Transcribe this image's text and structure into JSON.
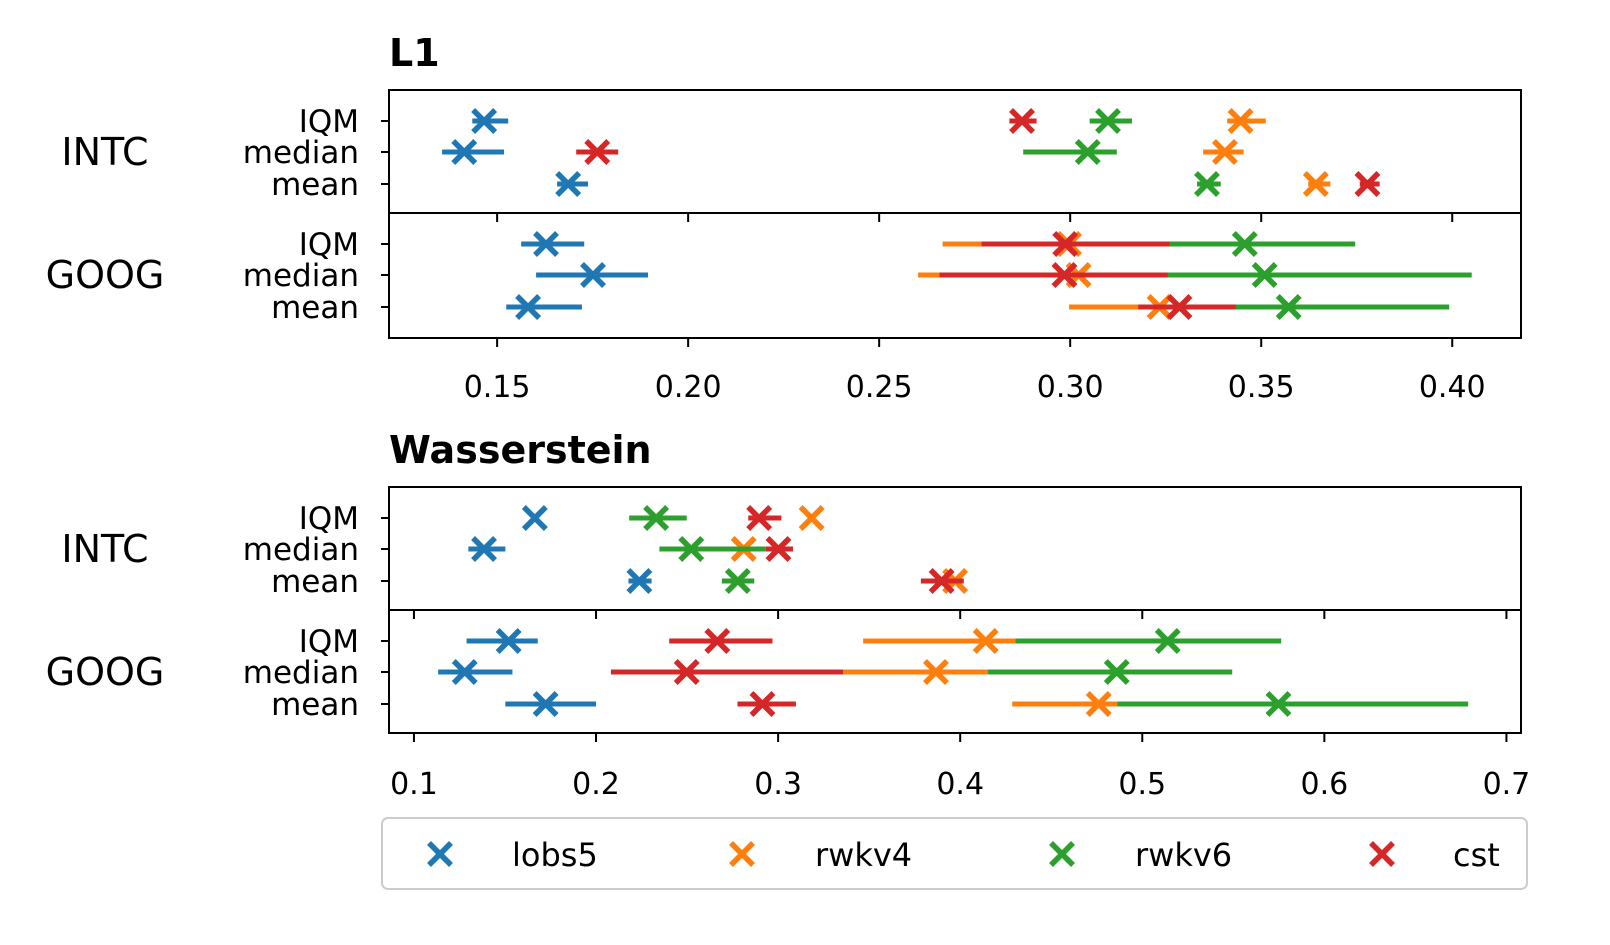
{
  "legend": {
    "position": "bottom",
    "items": [
      {
        "label": "lobs5",
        "color": "#1f77b4"
      },
      {
        "label": "rwkv4",
        "color": "#ff7f0e"
      },
      {
        "label": "rwkv6",
        "color": "#2ca02c"
      },
      {
        "label": "cst",
        "color": "#d62728"
      }
    ]
  },
  "chart_data": [
    {
      "type": "scatter",
      "title": "L1",
      "groups": [
        "INTC",
        "GOOG"
      ],
      "stats": [
        "IQM",
        "median",
        "mean"
      ],
      "xlim": [
        0.1217,
        0.418
      ],
      "xticks": [
        0.15,
        0.2,
        0.25,
        0.3,
        0.35,
        0.4
      ],
      "xtick_labels": [
        "0.15",
        "0.20",
        "0.25",
        "0.30",
        "0.35",
        "0.40"
      ],
      "grid": false,
      "series": [
        {
          "name": "lobs5",
          "color": "#1f77b4",
          "points": [
            {
              "group": "INTC",
              "stat": "IQM",
              "value": 0.1466,
              "ci": [
                0.1435,
                0.1529
              ]
            },
            {
              "group": "INTC",
              "stat": "median",
              "value": 0.1414,
              "ci": [
                0.1356,
                0.1518
              ]
            },
            {
              "group": "INTC",
              "stat": "mean",
              "value": 0.1686,
              "ci": [
                0.1657,
                0.1738
              ]
            },
            {
              "group": "GOOG",
              "stat": "IQM",
              "value": 0.1628,
              "ci": [
                0.1563,
                0.1728
              ]
            },
            {
              "group": "GOOG",
              "stat": "median",
              "value": 0.1751,
              "ci": [
                0.1602,
                0.1895
              ]
            },
            {
              "group": "GOOG",
              "stat": "mean",
              "value": 0.1581,
              "ci": [
                0.1524,
                0.1722
              ]
            }
          ]
        },
        {
          "name": "rwkv4",
          "color": "#ff7f0e",
          "points": [
            {
              "group": "INTC",
              "stat": "IQM",
              "value": 0.3446,
              "ci": [
                0.3411,
                0.3512
              ]
            },
            {
              "group": "INTC",
              "stat": "median",
              "value": 0.3405,
              "ci": [
                0.3348,
                0.3454
              ]
            },
            {
              "group": "INTC",
              "stat": "mean",
              "value": 0.3643,
              "ci": [
                0.3623,
                0.3681
              ]
            },
            {
              "group": "GOOG",
              "stat": "IQM",
              "value": 0.2997,
              "ci": [
                0.2666,
                0.33
              ]
            },
            {
              "group": "GOOG",
              "stat": "median",
              "value": 0.3022,
              "ci": [
                0.2602,
                0.336
              ]
            },
            {
              "group": "GOOG",
              "stat": "mean",
              "value": 0.3234,
              "ci": [
                0.2997,
                0.34
              ]
            }
          ]
        },
        {
          "name": "rwkv6",
          "color": "#2ca02c",
          "points": [
            {
              "group": "INTC",
              "stat": "IQM",
              "value": 0.3099,
              "ci": [
                0.3051,
                0.3162
              ]
            },
            {
              "group": "INTC",
              "stat": "median",
              "value": 0.3046,
              "ci": [
                0.2877,
                0.3122
              ]
            },
            {
              "group": "INTC",
              "stat": "mean",
              "value": 0.3358,
              "ci": [
                0.3332,
                0.3394
              ]
            },
            {
              "group": "GOOG",
              "stat": "IQM",
              "value": 0.3457,
              "ci": [
                0.318,
                0.3746
              ]
            },
            {
              "group": "GOOG",
              "stat": "median",
              "value": 0.3509,
              "ci": [
                0.32,
                0.4051
              ]
            },
            {
              "group": "GOOG",
              "stat": "mean",
              "value": 0.3572,
              "ci": [
                0.335,
                0.3992
              ]
            }
          ]
        },
        {
          "name": "cst",
          "color": "#d62728",
          "points": [
            {
              "group": "INTC",
              "stat": "IQM",
              "value": 0.2874,
              "ci": [
                0.2841,
                0.2912
              ]
            },
            {
              "group": "INTC",
              "stat": "median",
              "value": 0.1762,
              "ci": [
                0.1707,
                0.1817
              ]
            },
            {
              "group": "INTC",
              "stat": "mean",
              "value": 0.3778,
              "ci": [
                0.3758,
                0.381
              ]
            },
            {
              "group": "GOOG",
              "stat": "IQM",
              "value": 0.2987,
              "ci": [
                0.2768,
                0.326
              ]
            },
            {
              "group": "GOOG",
              "stat": "median",
              "value": 0.2985,
              "ci": [
                0.2658,
                0.3255
              ]
            },
            {
              "group": "GOOG",
              "stat": "mean",
              "value": 0.3286,
              "ci": [
                0.3178,
                0.3433
              ]
            }
          ]
        }
      ]
    },
    {
      "type": "scatter",
      "title": "Wasserstein",
      "groups": [
        "INTC",
        "GOOG"
      ],
      "stats": [
        "IQM",
        "median",
        "mean"
      ],
      "xlim": [
        0.0863,
        0.708
      ],
      "xticks": [
        0.1,
        0.2,
        0.3,
        0.4,
        0.5,
        0.6,
        0.7
      ],
      "xtick_labels": [
        "0.1",
        "0.2",
        "0.3",
        "0.4",
        "0.5",
        "0.6",
        "0.7"
      ],
      "grid": false,
      "series": [
        {
          "name": "lobs5",
          "color": "#1f77b4",
          "points": [
            {
              "group": "INTC",
              "stat": "IQM",
              "value": 0.1664,
              "ci": null
            },
            {
              "group": "INTC",
              "stat": "median",
              "value": 0.1385,
              "ci": [
                0.1299,
                0.1502
              ]
            },
            {
              "group": "INTC",
              "stat": "mean",
              "value": 0.2238,
              "ci": [
                0.2178,
                0.2305
              ]
            },
            {
              "group": "GOOG",
              "stat": "IQM",
              "value": 0.152,
              "ci": [
                0.1289,
                0.168
              ]
            },
            {
              "group": "GOOG",
              "stat": "median",
              "value": 0.1279,
              "ci": [
                0.1133,
                0.1541
              ]
            },
            {
              "group": "GOOG",
              "stat": "mean",
              "value": 0.1723,
              "ci": [
                0.1502,
                0.2
              ]
            }
          ]
        },
        {
          "name": "rwkv4",
          "color": "#ff7f0e",
          "points": [
            {
              "group": "INTC",
              "stat": "IQM",
              "value": 0.3184,
              "ci": null
            },
            {
              "group": "INTC",
              "stat": "median",
              "value": 0.2811,
              "ci": null
            },
            {
              "group": "INTC",
              "stat": "mean",
              "value": 0.3972,
              "ci": [
                0.392,
                0.402
              ]
            },
            {
              "group": "GOOG",
              "stat": "IQM",
              "value": 0.414,
              "ci": [
                0.3467,
                0.4303
              ]
            },
            {
              "group": "GOOG",
              "stat": "median",
              "value": 0.3867,
              "ci": [
                0.3357,
                0.4153
              ]
            },
            {
              "group": "GOOG",
              "stat": "mean",
              "value": 0.4761,
              "ci": [
                0.4286,
                0.4864
              ]
            }
          ]
        },
        {
          "name": "rwkv6",
          "color": "#2ca02c",
          "points": [
            {
              "group": "INTC",
              "stat": "IQM",
              "value": 0.233,
              "ci": [
                0.2182,
                0.2498
              ]
            },
            {
              "group": "INTC",
              "stat": "median",
              "value": 0.2523,
              "ci": [
                0.2348,
                0.2932
              ]
            },
            {
              "group": "INTC",
              "stat": "mean",
              "value": 0.2779,
              "ci": [
                0.2691,
                0.2869
              ]
            },
            {
              "group": "GOOG",
              "stat": "IQM",
              "value": 0.514,
              "ci": [
                0.4303,
                0.5763
              ]
            },
            {
              "group": "GOOG",
              "stat": "median",
              "value": 0.486,
              "ci": [
                0.4153,
                0.5494
              ]
            },
            {
              "group": "GOOG",
              "stat": "mean",
              "value": 0.5748,
              "ci": [
                0.4864,
                0.679
              ]
            }
          ]
        },
        {
          "name": "cst",
          "color": "#d62728",
          "points": [
            {
              "group": "INTC",
              "stat": "IQM",
              "value": 0.2896,
              "ci": [
                0.2836,
                0.3018
              ]
            },
            {
              "group": "INTC",
              "stat": "median",
              "value": 0.3002,
              "ci": [
                0.2932,
                0.3082
              ]
            },
            {
              "group": "INTC",
              "stat": "mean",
              "value": 0.3898,
              "ci": [
                0.3784,
                0.4019
              ]
            },
            {
              "group": "GOOG",
              "stat": "IQM",
              "value": 0.2666,
              "ci": [
                0.2402,
                0.2969
              ]
            },
            {
              "group": "GOOG",
              "stat": "median",
              "value": 0.2498,
              "ci": [
                0.2082,
                0.3357
              ]
            },
            {
              "group": "GOOG",
              "stat": "mean",
              "value": 0.2914,
              "ci": [
                0.2777,
                0.3098
              ]
            }
          ]
        }
      ]
    }
  ]
}
